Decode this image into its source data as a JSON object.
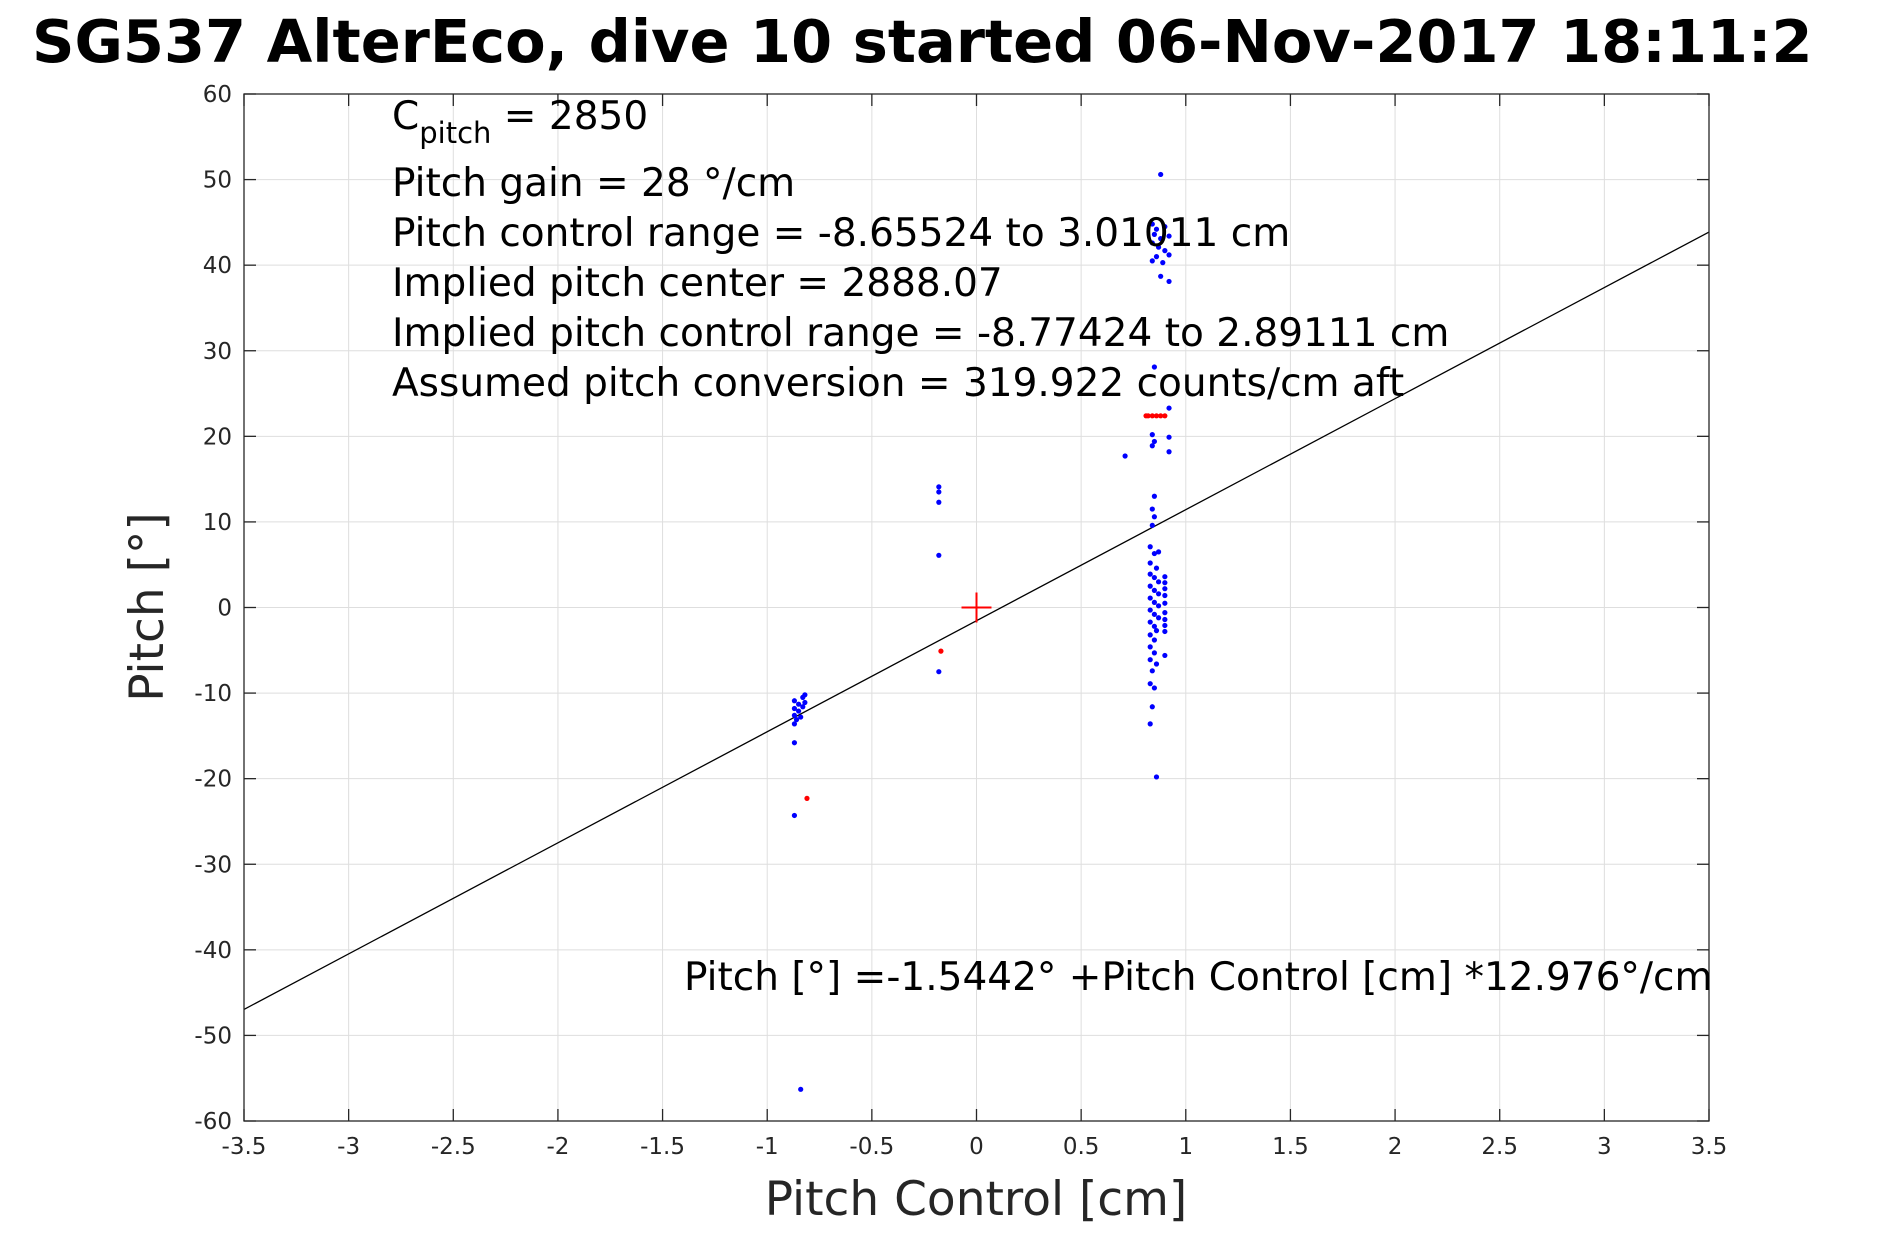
{
  "chart_data": {
    "type": "scatter",
    "title": "SG537 AlterEco, dive 10 started 06-Nov-2017 18:11:2",
    "xlabel": "Pitch Control [cm]",
    "ylabel": "Pitch [°]",
    "xlim": [
      -3.5,
      3.5
    ],
    "ylim": [
      -60,
      60
    ],
    "xticks": [
      -3.5,
      -3,
      -2.5,
      -2,
      -1.5,
      -1,
      -0.5,
      0,
      0.5,
      1,
      1.5,
      2,
      2.5,
      3,
      3.5
    ],
    "xtick_labels": [
      "-3.5",
      "-3",
      "-2.5",
      "-2",
      "-1.5",
      "-1",
      "-0.5",
      "0",
      "0.5",
      "1",
      "1.5",
      "2",
      "2.5",
      "3",
      "3.5"
    ],
    "yticks": [
      -60,
      -50,
      -40,
      -30,
      -20,
      -10,
      0,
      10,
      20,
      30,
      40,
      50,
      60
    ],
    "ytick_labels": [
      "-60",
      "-50",
      "-40",
      "-30",
      "-20",
      "-10",
      "0",
      "10",
      "20",
      "30",
      "40",
      "50",
      "60"
    ],
    "grid": true,
    "annotations": {
      "c_pitch_main": "C",
      "c_pitch_sub": "pitch",
      "c_pitch_value": " = 2850",
      "lines": [
        "Pitch gain = 28 °/cm",
        "Pitch control range = -8.65524 to 3.01011 cm",
        "Implied pitch center = 2888.07",
        "Implied pitch control range = -8.77424 to 2.89111 cm",
        "Assumed pitch conversion = 319.922 counts/cm aft"
      ],
      "fit_equation": "Pitch [°] =-1.5442° +Pitch Control [cm] *12.976°/cm"
    },
    "fit_line": {
      "intercept": -1.5442,
      "slope": 12.976,
      "color": "#000000"
    },
    "center_marker": {
      "x": 0,
      "y": 0,
      "color": "#ff0000"
    },
    "series": [
      {
        "color": "#0000ff",
        "points": [
          [
            0.88,
            50.6
          ],
          [
            0.84,
            44.8
          ],
          [
            0.86,
            44.2
          ],
          [
            0.9,
            44.5
          ],
          [
            0.85,
            43.6
          ],
          [
            0.88,
            43.1
          ],
          [
            0.92,
            43.4
          ],
          [
            0.84,
            42.6
          ],
          [
            0.87,
            42.1
          ],
          [
            0.9,
            41.7
          ],
          [
            0.92,
            41.2
          ],
          [
            0.86,
            41.0
          ],
          [
            0.84,
            40.5
          ],
          [
            0.89,
            40.3
          ],
          [
            0.88,
            38.7
          ],
          [
            0.92,
            38.1
          ],
          [
            0.85,
            28.1
          ],
          [
            0.92,
            23.3
          ],
          [
            0.84,
            20.2
          ],
          [
            0.85,
            19.4
          ],
          [
            0.84,
            18.9
          ],
          [
            0.92,
            19.9
          ],
          [
            0.92,
            18.2
          ],
          [
            0.71,
            17.7
          ],
          [
            0.85,
            13.0
          ],
          [
            0.84,
            11.5
          ],
          [
            0.85,
            10.6
          ],
          [
            0.84,
            9.6
          ],
          [
            -0.18,
            14.1
          ],
          [
            -0.18,
            13.5
          ],
          [
            -0.18,
            12.3
          ],
          [
            -0.18,
            6.1
          ],
          [
            -0.18,
            -7.5
          ],
          [
            0.83,
            7.1
          ],
          [
            0.85,
            6.3
          ],
          [
            0.87,
            6.5
          ],
          [
            0.83,
            5.2
          ],
          [
            0.86,
            4.6
          ],
          [
            0.83,
            3.9
          ],
          [
            0.85,
            3.5
          ],
          [
            0.87,
            3.0
          ],
          [
            0.83,
            2.5
          ],
          [
            0.85,
            2.0
          ],
          [
            0.87,
            1.6
          ],
          [
            0.83,
            1.1
          ],
          [
            0.85,
            0.6
          ],
          [
            0.87,
            0.2
          ],
          [
            0.83,
            -0.3
          ],
          [
            0.85,
            -0.8
          ],
          [
            0.87,
            -1.2
          ],
          [
            0.83,
            -1.7
          ],
          [
            0.85,
            -2.2
          ],
          [
            0.86,
            -2.7
          ],
          [
            0.83,
            -3.2
          ],
          [
            0.85,
            -3.8
          ],
          [
            0.83,
            -4.6
          ],
          [
            0.85,
            -5.3
          ],
          [
            0.83,
            -6.1
          ],
          [
            0.86,
            -6.6
          ],
          [
            0.84,
            -7.4
          ],
          [
            0.83,
            -8.9
          ],
          [
            0.85,
            -9.4
          ],
          [
            0.84,
            -11.6
          ],
          [
            0.83,
            -13.6
          ],
          [
            0.86,
            -19.8
          ],
          [
            0.9,
            3.6
          ],
          [
            0.9,
            2.9
          ],
          [
            0.9,
            2.2
          ],
          [
            0.9,
            1.4
          ],
          [
            0.9,
            0.5
          ],
          [
            0.9,
            -0.6
          ],
          [
            0.9,
            -1.4
          ],
          [
            0.9,
            -2.1
          ],
          [
            0.9,
            -2.8
          ],
          [
            0.9,
            -5.6
          ],
          [
            -0.87,
            -10.9
          ],
          [
            -0.85,
            -11.3
          ],
          [
            -0.83,
            -10.5
          ],
          [
            -0.82,
            -10.2
          ],
          [
            -0.87,
            -11.8
          ],
          [
            -0.85,
            -12.1
          ],
          [
            -0.83,
            -11.6
          ],
          [
            -0.87,
            -12.6
          ],
          [
            -0.86,
            -13.1
          ],
          [
            -0.84,
            -12.8
          ],
          [
            -0.82,
            -11.1
          ],
          [
            -0.87,
            -13.6
          ],
          [
            -0.87,
            -15.8
          ],
          [
            -0.87,
            -24.3
          ],
          [
            -0.84,
            -56.3
          ]
        ]
      },
      {
        "color": "#ff0000",
        "points": [
          [
            0.82,
            22.4
          ],
          [
            0.84,
            22.4
          ],
          [
            0.86,
            22.4
          ],
          [
            0.88,
            22.4
          ],
          [
            0.9,
            22.4
          ],
          [
            0.81,
            22.4
          ],
          [
            -0.17,
            -5.1
          ],
          [
            -0.81,
            -22.3
          ]
        ]
      }
    ]
  }
}
